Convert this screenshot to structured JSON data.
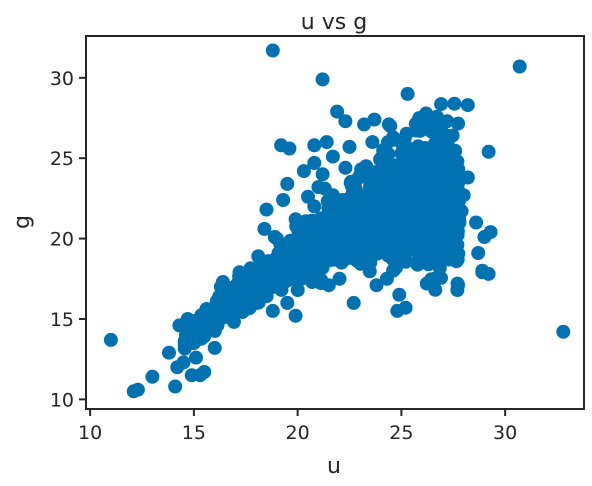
{
  "chart_data": {
    "type": "scatter",
    "title": "u vs g",
    "xlabel": "u",
    "ylabel": "g",
    "xlim": [
      9.8,
      33.8
    ],
    "ylim": [
      9.4,
      32.6
    ],
    "xticks": [
      10,
      15,
      20,
      25,
      30
    ],
    "yticks": [
      10,
      15,
      20,
      25,
      30
    ],
    "grid": false,
    "marker_color": "#0072b2",
    "axis_color": "#262626",
    "cloud_center_trend": [
      [
        14.2,
        13.2
      ],
      [
        15.5,
        14.8
      ],
      [
        17,
        16.3
      ],
      [
        18.5,
        17.6
      ],
      [
        20,
        18.8
      ],
      [
        21.5,
        20.3
      ],
      [
        23,
        21.6
      ],
      [
        24.5,
        22.3
      ],
      [
        26,
        22.6
      ],
      [
        27.5,
        22.5
      ]
    ],
    "points": [
      [
        11.0,
        13.7
      ],
      [
        12.1,
        10.5
      ],
      [
        12.3,
        10.6
      ],
      [
        13.0,
        11.4
      ],
      [
        13.8,
        12.9
      ],
      [
        14.1,
        10.8
      ],
      [
        14.2,
        12.0
      ],
      [
        14.3,
        14.6
      ],
      [
        14.5,
        12.3
      ],
      [
        14.7,
        15.0
      ],
      [
        14.9,
        11.5
      ],
      [
        15.1,
        12.6
      ],
      [
        15.3,
        11.5
      ],
      [
        15.5,
        11.7
      ],
      [
        16.0,
        13.2
      ],
      [
        16.4,
        17.3
      ],
      [
        18.8,
        31.7
      ],
      [
        21.2,
        29.9
      ],
      [
        30.7,
        30.7
      ],
      [
        32.8,
        14.2
      ],
      [
        22.7,
        16.0
      ],
      [
        25.2,
        15.7
      ],
      [
        24.8,
        15.5
      ],
      [
        24.9,
        16.5
      ],
      [
        23.8,
        17.1
      ],
      [
        27.7,
        16.8
      ],
      [
        28.9,
        17.9
      ],
      [
        29.2,
        17.8
      ],
      [
        28.7,
        19.1
      ],
      [
        29.0,
        20.1
      ],
      [
        29.3,
        20.4
      ],
      [
        28.6,
        21.0
      ],
      [
        27.7,
        19.6
      ],
      [
        27.3,
        18.7
      ],
      [
        26.3,
        18.4
      ],
      [
        25.8,
        18.6
      ],
      [
        25.5,
        19.3
      ],
      [
        24.6,
        18.0
      ],
      [
        24.3,
        17.5
      ],
      [
        23.5,
        18.5
      ],
      [
        22.5,
        18.8
      ],
      [
        21.5,
        17.1
      ],
      [
        21.2,
        18.2
      ],
      [
        20.7,
        17.3
      ],
      [
        20.0,
        16.8
      ],
      [
        19.5,
        16.0
      ],
      [
        19.9,
        15.2
      ],
      [
        18.8,
        15.5
      ],
      [
        17.2,
        16.0
      ],
      [
        19.2,
        25.8
      ],
      [
        19.6,
        25.6
      ],
      [
        20.3,
        24.2
      ],
      [
        19.5,
        23.4
      ],
      [
        19.3,
        22.4
      ],
      [
        18.5,
        21.8
      ],
      [
        20.8,
        25.8
      ],
      [
        21.4,
        26.0
      ],
      [
        21.9,
        27.9
      ],
      [
        22.3,
        27.3
      ],
      [
        23.2,
        27.1
      ],
      [
        23.7,
        27.4
      ],
      [
        24.4,
        27.1
      ],
      [
        25.3,
        29.0
      ],
      [
        26.5,
        27.3
      ],
      [
        27.2,
        27.3
      ],
      [
        28.2,
        28.3
      ],
      [
        29.2,
        25.4
      ],
      [
        27.7,
        24.8
      ],
      [
        28.2,
        23.8
      ],
      [
        28.0,
        22.7
      ],
      [
        27.9,
        21.7
      ],
      [
        26.8,
        26.3
      ],
      [
        25.9,
        26.7
      ],
      [
        24.6,
        26.3
      ],
      [
        23.6,
        26.0
      ],
      [
        22.5,
        25.7
      ],
      [
        21.7,
        25.1
      ],
      [
        20.8,
        24.7
      ],
      [
        21.0,
        23.2
      ],
      [
        20.5,
        22.6
      ],
      [
        18.4,
        20.6
      ],
      [
        22.7,
        23.5
      ],
      [
        23.3,
        24.5
      ],
      [
        24.2,
        25.0
      ],
      [
        25.0,
        25.3
      ],
      [
        26.0,
        25.1
      ],
      [
        26.7,
        24.9
      ],
      [
        27.2,
        24.4
      ],
      [
        27.5,
        23.6
      ],
      [
        25.7,
        22.1
      ],
      [
        24.7,
        21.5
      ],
      [
        23.8,
        21.9
      ],
      [
        22.8,
        22.2
      ],
      [
        26.5,
        21.0
      ],
      [
        27.1,
        20.7
      ],
      [
        25.2,
        20.2
      ],
      [
        24.2,
        19.9
      ],
      [
        22.4,
        19.5
      ],
      [
        21.7,
        20.8
      ],
      [
        20.9,
        20.3
      ],
      [
        20.4,
        19.6
      ],
      [
        19.7,
        19.7
      ],
      [
        19.2,
        19.1
      ],
      [
        18.6,
        18.6
      ],
      [
        18.1,
        18.2
      ],
      [
        17.6,
        17.8
      ],
      [
        17.1,
        17.2
      ],
      [
        16.6,
        16.6
      ],
      [
        16.1,
        16.1
      ],
      [
        15.6,
        15.6
      ],
      [
        15.1,
        14.9
      ],
      [
        14.7,
        14.1
      ],
      [
        15.0,
        13.5
      ],
      [
        15.9,
        14.5
      ],
      [
        16.8,
        15.4
      ],
      [
        17.8,
        16.3
      ],
      [
        18.7,
        17.2
      ],
      [
        19.7,
        18.0
      ],
      [
        20.6,
        18.9
      ],
      [
        21.6,
        19.7
      ],
      [
        22.5,
        20.6
      ],
      [
        23.4,
        21.4
      ],
      [
        24.4,
        22.1
      ],
      [
        25.3,
        22.7
      ],
      [
        26.3,
        23.2
      ],
      [
        27.3,
        23.0
      ],
      [
        26.9,
        22.0
      ],
      [
        25.9,
        21.6
      ],
      [
        24.9,
        21.0
      ],
      [
        23.9,
        20.4
      ],
      [
        22.9,
        20.0
      ],
      [
        22.0,
        19.0
      ],
      [
        21.1,
        18.5
      ],
      [
        20.2,
        17.9
      ],
      [
        19.3,
        17.2
      ],
      [
        18.3,
        16.7
      ],
      [
        17.4,
        16.0
      ],
      [
        16.5,
        15.3
      ],
      [
        15.6,
        14.6
      ],
      [
        16.3,
        17.0
      ],
      [
        17.2,
        17.9
      ],
      [
        18.1,
        18.9
      ],
      [
        19.0,
        20.0
      ],
      [
        19.9,
        21.2
      ],
      [
        20.8,
        22.0
      ],
      [
        21.7,
        22.7
      ],
      [
        22.6,
        23.3
      ],
      [
        23.5,
        23.4
      ],
      [
        24.4,
        24.0
      ],
      [
        25.3,
        24.3
      ],
      [
        26.2,
        24.0
      ],
      [
        27.1,
        23.1
      ],
      [
        27.8,
        21.0
      ],
      [
        26.4,
        20.1
      ],
      [
        24.0,
        20.7
      ],
      [
        23.1,
        19.0
      ],
      [
        25.1,
        19.2
      ],
      [
        26.1,
        18.7
      ],
      [
        27.4,
        19.4
      ],
      [
        28.9,
        18.0
      ],
      [
        22.3,
        24.4
      ],
      [
        21.2,
        24.0
      ],
      [
        24.0,
        23.0
      ],
      [
        25.0,
        23.6
      ],
      [
        26.4,
        23.8
      ],
      [
        21.5,
        21.6
      ],
      [
        18.9,
        20.1
      ],
      [
        17.9,
        17.0
      ]
    ]
  }
}
